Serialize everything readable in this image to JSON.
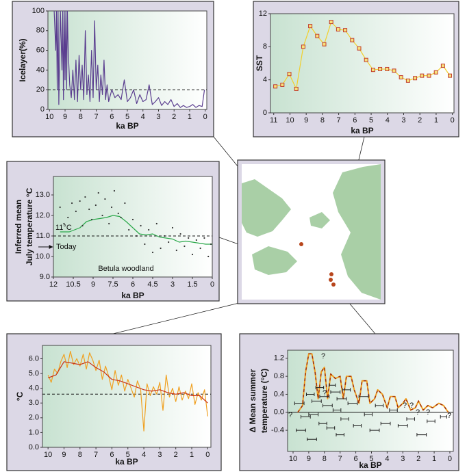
{
  "chart_data": [
    {
      "type": "line",
      "ylabel": [
        "Icelayer(%)"
      ],
      "xlabel": "ka BP",
      "xlim": [
        10.1,
        -0.1
      ],
      "xticks": [
        10,
        9,
        8,
        7,
        6,
        5,
        4,
        3,
        2,
        1,
        0
      ],
      "ylim": [
        0,
        100
      ],
      "yticks": [
        0,
        20,
        40,
        60,
        80,
        100
      ],
      "reference_line": 20,
      "reference_style": "dashed",
      "series": [
        {
          "color": "#5a3d8f",
          "x": [
            9.7,
            9.6,
            9.55,
            9.5,
            9.45,
            9.4,
            9.3,
            9.2,
            9.15,
            9.1,
            9.05,
            9.0,
            8.95,
            8.9,
            8.85,
            8.8,
            8.7,
            8.6,
            8.5,
            8.4,
            8.3,
            8.2,
            8.1,
            8.0,
            7.9,
            7.8,
            7.7,
            7.6,
            7.5,
            7.4,
            7.3,
            7.2,
            7.1,
            7.0,
            6.9,
            6.8,
            6.7,
            6.6,
            6.5,
            6.4,
            6.3,
            6.2,
            6.0,
            5.8,
            5.6,
            5.4,
            5.2,
            5.0,
            4.8,
            4.6,
            4.4,
            4.2,
            4.0,
            3.8,
            3.6,
            3.4,
            3.2,
            3.0,
            2.8,
            2.6,
            2.4,
            2.2,
            2.0,
            1.8,
            1.6,
            1.4,
            1.2,
            1.0,
            0.8,
            0.6,
            0.4,
            0.2,
            0.05
          ],
          "values": [
            100,
            60,
            100,
            20,
            100,
            5,
            100,
            40,
            100,
            10,
            100,
            30,
            100,
            20,
            100,
            60,
            25,
            12,
            40,
            10,
            50,
            8,
            55,
            20,
            45,
            10,
            80,
            15,
            35,
            8,
            60,
            12,
            90,
            20,
            45,
            8,
            35,
            15,
            50,
            10,
            25,
            8,
            20,
            12,
            15,
            10,
            30,
            8,
            12,
            20,
            6,
            15,
            8,
            10,
            25,
            5,
            8,
            12,
            4,
            8,
            5,
            10,
            3,
            6,
            2,
            4,
            2,
            3,
            5,
            2,
            4,
            3,
            20
          ]
        }
      ]
    },
    {
      "type": "line",
      "ylabel": [
        "SST"
      ],
      "xlabel": "ka BP",
      "xlim": [
        11.2,
        -0.1
      ],
      "xticks": [
        11,
        10,
        9,
        8,
        7,
        6,
        5,
        4,
        3,
        2,
        1,
        0
      ],
      "ylim": [
        0,
        12
      ],
      "yticks": [
        0,
        4,
        8,
        12
      ],
      "series": [
        {
          "color": "#f2cf2a",
          "marker": "square",
          "marker_color": "#c0392b",
          "x": [
            10.9,
            10.47,
            10.04,
            9.61,
            9.18,
            8.75,
            8.32,
            7.89,
            7.46,
            7.03,
            6.6,
            6.17,
            5.74,
            5.31,
            4.88,
            4.45,
            4.02,
            3.59,
            3.16,
            2.73,
            2.3,
            1.87,
            1.44,
            1.01,
            0.58,
            0.15
          ],
          "values": [
            3.2,
            3.4,
            4.7,
            2.9,
            8.0,
            10.5,
            9.3,
            8.3,
            11.0,
            10.1,
            10.0,
            8.8,
            7.8,
            6.4,
            5.2,
            5.3,
            5.3,
            5.1,
            4.3,
            3.9,
            4.2,
            4.5,
            4.5,
            4.9,
            5.7,
            4.5
          ]
        }
      ]
    },
    {
      "type": "line",
      "ylabel": [
        "Inferred mean",
        "July temperature °C"
      ],
      "xlabel": "ka BP",
      "xlim": [
        12,
        0
      ],
      "xticks": [
        12,
        10.5,
        9,
        7.5,
        6,
        4.5,
        3,
        1.5,
        0
      ],
      "ylim": [
        9,
        13.9
      ],
      "yticks": [
        {
          "value": 9,
          "label": "9.0"
        },
        {
          "value": 10,
          "label": "10.0"
        },
        {
          "value": 11,
          "label": "11.0"
        },
        {
          "value": 12,
          "label": "12.0"
        },
        {
          "value": 13,
          "label": "13.0"
        }
      ],
      "reference_line": 11,
      "reference_style": "dashed",
      "annotations": [
        "11°C",
        "Today",
        "Betula woodland"
      ],
      "series": [
        {
          "color": "#2aa84a",
          "x": [
            11.5,
            10.8,
            10,
            9.5,
            9,
            8.5,
            8,
            7.5,
            7,
            6.5,
            6,
            5.5,
            5,
            4.5,
            4,
            3.5,
            3,
            2.5,
            2,
            1.5,
            1,
            0.5,
            0
          ],
          "values": [
            11.2,
            11.2,
            11.4,
            11.7,
            11.8,
            11.85,
            11.9,
            12.0,
            11.95,
            11.7,
            11.4,
            11.1,
            11.05,
            11.1,
            10.95,
            10.9,
            10.85,
            10.7,
            10.75,
            10.7,
            10.65,
            10.6,
            10.6
          ]
        }
      ],
      "points": {
        "color": "#333333",
        "x": [
          11.5,
          11.2,
          10.9,
          10.6,
          10.3,
          10.0,
          9.8,
          9.6,
          9.3,
          9.1,
          8.8,
          8.6,
          8.3,
          8.1,
          7.8,
          7.6,
          7.4,
          7.1,
          6.9,
          6.6,
          6.3,
          6.0,
          5.7,
          5.4,
          5.1,
          4.8,
          4.5,
          4.2,
          3.9,
          3.6,
          3.3,
          3.0,
          2.7,
          2.4,
          2.1,
          1.8,
          1.5,
          1.2,
          0.9,
          0.6,
          0.3,
          0.1
        ],
        "values": [
          12.4,
          11.6,
          11.9,
          12.6,
          12.2,
          12.7,
          11.5,
          12.9,
          12.3,
          11.8,
          12.5,
          13.1,
          12.0,
          12.8,
          11.6,
          12.4,
          13.2,
          12.1,
          11.9,
          12.6,
          11.3,
          11.8,
          11.0,
          11.5,
          10.6,
          11.3,
          10.2,
          11.6,
          10.4,
          11.0,
          10.7,
          11.4,
          10.3,
          11.1,
          10.5,
          10.9,
          10.1,
          10.8,
          10.4,
          10.9,
          10.0,
          10.6
        ]
      }
    },
    {
      "type": "line",
      "ylabel": [
        "°C"
      ],
      "xlabel": "ka BP",
      "xlim": [
        10.35,
        -0.2
      ],
      "xticks": [
        10,
        9,
        8,
        7,
        6,
        5,
        4,
        3,
        2,
        1,
        0
      ],
      "ylim": [
        0,
        6.9
      ],
      "yticks": [
        {
          "value": 0,
          "label": "0.0"
        },
        {
          "value": 1,
          "label": "1.0"
        },
        {
          "value": 2,
          "label": "2.0"
        },
        {
          "value": 3,
          "label": "3.0"
        },
        {
          "value": 4,
          "label": "4.0"
        },
        {
          "value": 5,
          "label": "5.0"
        },
        {
          "value": 6,
          "label": "6.0"
        }
      ],
      "reference_line": 3.6,
      "reference_style": "dashed",
      "series": [
        {
          "color": "#f0a020",
          "x": [
            10,
            9.8,
            9.6,
            9.4,
            9.2,
            9,
            8.8,
            8.6,
            8.4,
            8.2,
            8,
            7.8,
            7.6,
            7.4,
            7.2,
            7,
            6.8,
            6.6,
            6.4,
            6.2,
            6,
            5.8,
            5.6,
            5.4,
            5.2,
            5,
            4.8,
            4.6,
            4.4,
            4.2,
            4,
            3.8,
            3.6,
            3.4,
            3.2,
            3,
            2.8,
            2.6,
            2.4,
            2.2,
            2,
            1.8,
            1.6,
            1.4,
            1.2,
            1,
            0.8,
            0.6,
            0.4,
            0.2,
            0
          ],
          "values": [
            4.9,
            4.4,
            5.3,
            5.0,
            5.8,
            6.3,
            5.4,
            6.5,
            5.6,
            6.0,
            5.5,
            6.3,
            5.3,
            6.4,
            5.9,
            5.2,
            5.9,
            4.6,
            5.5,
            4.8,
            3.9,
            5.2,
            4.2,
            4.9,
            3.8,
            4.6,
            4.0,
            3.4,
            4.5,
            3.9,
            1.1,
            4.3,
            3.5,
            4.1,
            3.6,
            4.4,
            2.5,
            4.9,
            3.4,
            4.0,
            3.1,
            4.1,
            3.2,
            3.8,
            3.3,
            4.3,
            2.9,
            3.7,
            3.2,
            3.9,
            2.1
          ]
        },
        {
          "color": "#c83218",
          "x": [
            10,
            9.5,
            9,
            8.5,
            8,
            7.5,
            7,
            6.5,
            6,
            5.5,
            5,
            4.5,
            4,
            3.5,
            3,
            2.5,
            2,
            1.5,
            1,
            0.5,
            0
          ],
          "values": [
            4.7,
            4.9,
            5.8,
            5.7,
            5.6,
            5.8,
            5.4,
            5.1,
            4.6,
            4.5,
            4.3,
            4.1,
            3.9,
            3.8,
            3.9,
            3.7,
            3.6,
            3.7,
            3.5,
            3.5,
            3.0
          ]
        }
      ]
    },
    {
      "type": "line",
      "ylabel": [
        "Δ Mean summer",
        "temperature (°C)"
      ],
      "xlabel": "ka BP",
      "xlim": [
        10.35,
        -0.22
      ],
      "xticks": [
        10,
        9,
        8,
        7,
        6,
        5,
        4,
        3,
        2,
        1,
        0
      ],
      "ylim": [
        -0.87,
        1.38
      ],
      "yticks": [
        -0.4,
        {
          "value": 0,
          "label": "0.0"
        },
        0.4,
        0.8,
        1.2
      ],
      "reference_line": 0,
      "reference_style": "solid",
      "annotations": [
        "?",
        "?",
        "?",
        "?",
        "?",
        "?",
        "?",
        "?"
      ],
      "series": [
        {
          "color": "#f0a020",
          "dash_color": "#9b2a10",
          "x": [
            9.7,
            9.4,
            9.2,
            9.0,
            8.8,
            8.6,
            8.4,
            8.2,
            8.0,
            7.8,
            7.6,
            7.3,
            7.0,
            6.8,
            6.6,
            6.3,
            6.1,
            5.8,
            5.6,
            5.3,
            5.1,
            4.8,
            4.6,
            4.3,
            4.0,
            3.8,
            3.5,
            3.3,
            3.0,
            2.8,
            2.5,
            2.2,
            2.0,
            1.7,
            1.4,
            1.1,
            0.7,
            0.4,
            0.1
          ],
          "values": [
            0.0,
            0.15,
            0.9,
            1.3,
            1.3,
            0.9,
            0.3,
            0.9,
            1.0,
            0.3,
            0.85,
            0.75,
            0.8,
            0.3,
            0.8,
            0.8,
            0.5,
            0.2,
            0.7,
            0.7,
            0.2,
            0.3,
            0.5,
            0.4,
            0.1,
            0.35,
            0.35,
            0.1,
            0.2,
            0.3,
            0.05,
            0.1,
            0.25,
            0.05,
            0.15,
            0.1,
            0.2,
            0.15,
            0.0
          ]
        }
      ],
      "errorbars": {
        "color": "#222222",
        "x": [
          9.6,
          9.2,
          9.5,
          8.9,
          8.5,
          8.7,
          8.3,
          8.0,
          8.1,
          7.8,
          7.6,
          7.3,
          7.2,
          7.5,
          6.9,
          6.7,
          6.6,
          6.2,
          5.9,
          5.5,
          5.2,
          4.8,
          4.5,
          4.1,
          3.6,
          3.0,
          2.5,
          1.8,
          1.2,
          0.4,
          8.8,
          7.0
        ],
        "values": [
          0.2,
          -0.1,
          -0.4,
          0.4,
          0.25,
          -0.05,
          0.55,
          0.35,
          -0.25,
          0.15,
          -0.35,
          0.45,
          0.05,
          0.6,
          0.3,
          -0.15,
          0.5,
          0.2,
          -0.3,
          0.35,
          -0.05,
          -0.4,
          0.15,
          -0.25,
          0.05,
          -0.3,
          -0.15,
          -0.5,
          -0.2,
          -0.1,
          -0.6,
          -0.5
        ],
        "xerr": [
          0.3,
          0.3,
          0.3,
          0.25,
          0.3,
          0.3,
          0.25,
          0.3,
          0.25,
          0.3,
          0.25,
          0.3,
          0.25,
          0.2,
          0.3,
          0.25,
          0.25,
          0.3,
          0.25,
          0.3,
          0.25,
          0.3,
          0.25,
          0.3,
          0.25,
          0.3,
          0.25,
          0.3,
          0.25,
          0.2,
          0.3,
          0.25
        ]
      }
    }
  ]
}
